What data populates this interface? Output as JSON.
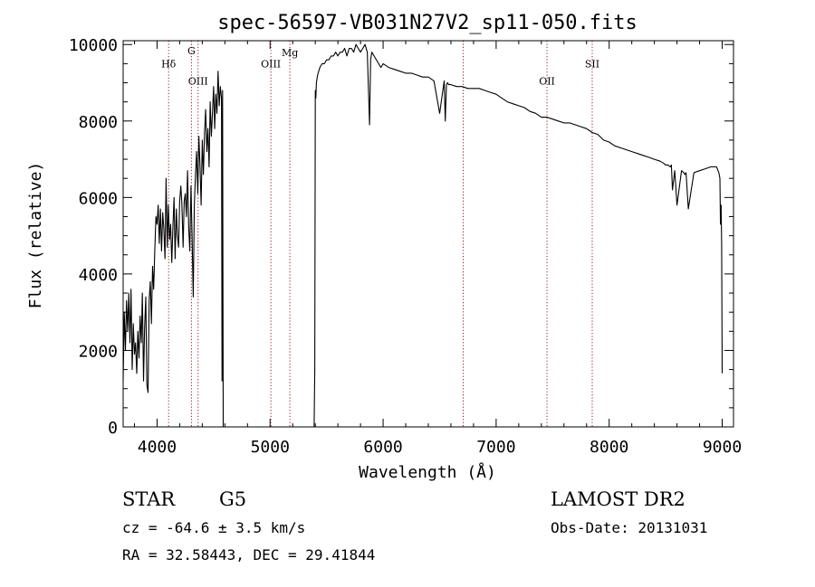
{
  "chart_data": {
    "type": "line",
    "title": "spec-56597-VB031N27V2_sp11-050.fits",
    "xlabel": "Wavelength (Å)",
    "ylabel": "Flux (relative)",
    "xlim": [
      3700,
      9100
    ],
    "ylim": [
      0,
      10100
    ],
    "xticks": [
      4000,
      5000,
      6000,
      7000,
      8000,
      9000
    ],
    "yticks": [
      0,
      2000,
      4000,
      6000,
      8000,
      10000
    ],
    "xtick_labels": [
      "4000",
      "5000",
      "6000",
      "7000",
      "8000",
      "9000"
    ],
    "ytick_labels": [
      "0",
      "2000",
      "4000",
      "6000",
      "8000",
      "10000"
    ],
    "grid": false,
    "line_color": "#000000",
    "marker_color": "#8b0000",
    "series": [
      {
        "x": [
          3700,
          3710,
          3720,
          3730,
          3740,
          3750,
          3760,
          3770,
          3780,
          3790,
          3800,
          3810,
          3820,
          3830,
          3840,
          3850,
          3860,
          3870,
          3880,
          3890,
          3900,
          3910,
          3920,
          3930,
          3940,
          3950,
          3960,
          3970,
          3980,
          3990,
          4000,
          4010,
          4020,
          4030,
          4040,
          4050,
          4060,
          4070,
          4080,
          4090,
          4100,
          4110,
          4120,
          4130,
          4140,
          4150,
          4160,
          4170,
          4180,
          4190,
          4200,
          4210,
          4220,
          4230,
          4240,
          4250,
          4260,
          4270,
          4280,
          4290,
          4300,
          4310,
          4320,
          4330,
          4340,
          4350,
          4360,
          4370,
          4380,
          4390,
          4400,
          4410,
          4420,
          4430,
          4440,
          4450,
          4460,
          4470,
          4480,
          4490,
          4500,
          4510,
          4520,
          4530,
          4540,
          4550,
          4560,
          4570,
          4575,
          4580,
          4585,
          4590,
          4600,
          5380,
          5390,
          5395,
          5400,
          5405,
          5410,
          5420,
          5440,
          5460,
          5480,
          5500,
          5520,
          5540,
          5560,
          5580,
          5600,
          5620,
          5640,
          5660,
          5680,
          5700,
          5720,
          5740,
          5760,
          5780,
          5800,
          5820,
          5840,
          5860,
          5880,
          5890,
          5900,
          5920,
          5940,
          5960,
          5980,
          6000,
          6050,
          6100,
          6150,
          6200,
          6250,
          6300,
          6350,
          6400,
          6450,
          6500,
          6540,
          6550,
          6560,
          6570,
          6580,
          6600,
          6650,
          6700,
          6750,
          6800,
          6850,
          6900,
          6950,
          7000,
          7050,
          7100,
          7150,
          7200,
          7250,
          7300,
          7350,
          7400,
          7450,
          7500,
          7550,
          7600,
          7650,
          7700,
          7750,
          7800,
          7850,
          7900,
          7950,
          8000,
          8050,
          8100,
          8150,
          8200,
          8250,
          8300,
          8350,
          8400,
          8450,
          8480,
          8500,
          8520,
          8540,
          8550,
          8560,
          8580,
          8600,
          8640,
          8660,
          8670,
          8680,
          8700,
          8750,
          8800,
          8850,
          8900,
          8950,
          8970,
          8980,
          8985,
          8990,
          8995,
          9000
        ],
        "y": [
          1200,
          3000,
          2000,
          3300,
          2500,
          3500,
          2200,
          3600,
          1500,
          2700,
          1900,
          2200,
          1400,
          2500,
          1800,
          2900,
          2200,
          3500,
          1200,
          2600,
          3400,
          1100,
          900,
          3300,
          3800,
          2700,
          4200,
          3600,
          4600,
          5500,
          5300,
          5800,
          4800,
          5700,
          4600,
          5600,
          5200,
          4400,
          6500,
          4700,
          5800,
          4900,
          5300,
          4300,
          5200,
          6000,
          4400,
          5700,
          5000,
          4700,
          5900,
          6300,
          5800,
          4700,
          5900,
          6100,
          5500,
          6700,
          5200,
          4600,
          6300,
          5000,
          3400,
          5800,
          6600,
          7200,
          6100,
          7600,
          6800,
          5800,
          7500,
          6600,
          7700,
          8300,
          7200,
          7800,
          6800,
          8500,
          7600,
          8200,
          8900,
          7800,
          8700,
          8200,
          9300,
          8400,
          8900,
          8600,
          1200,
          8800,
          0,
          0,
          0,
          0,
          0,
          1500,
          8800,
          8600,
          9000,
          9200,
          9400,
          9500,
          9500,
          9600,
          9600,
          9700,
          9700,
          9800,
          9700,
          9800,
          9800,
          9900,
          9700,
          9900,
          9900,
          9800,
          10000,
          9900,
          9800,
          9900,
          10000,
          9800,
          7900,
          9600,
          9800,
          9700,
          9600,
          9500,
          9400,
          9500,
          9400,
          9350,
          9300,
          9250,
          9250,
          9200,
          9150,
          9150,
          9050,
          8200,
          9050,
          8000,
          8950,
          9000,
          8950,
          8950,
          8900,
          8900,
          8850,
          8850,
          8850,
          8800,
          8750,
          8700,
          8600,
          8500,
          8450,
          8400,
          8350,
          8250,
          8200,
          8100,
          8100,
          8050,
          8000,
          7950,
          7950,
          7900,
          7850,
          7800,
          7700,
          7650,
          7500,
          7450,
          7350,
          7300,
          7250,
          7200,
          7150,
          7100,
          7050,
          7000,
          6950,
          6900,
          6850,
          6850,
          6800,
          6850,
          6200,
          6700,
          5800,
          6700,
          6650,
          6600,
          6650,
          5700,
          6650,
          6700,
          6750,
          6800,
          6800,
          6650,
          6500,
          5300,
          5800,
          4800,
          1400
        ],
        "markers": [
          {
            "x": 4102,
            "label": "Hδ",
            "label_y": 9400
          },
          {
            "x": 4304,
            "label": "G",
            "label_y": 9750
          },
          {
            "x": 4363,
            "label": "OIII",
            "label_y": 8950
          },
          {
            "x": 5007,
            "label": "OIII",
            "label_y": 9400
          },
          {
            "x": 5175,
            "label": "Mg",
            "label_y": 9700
          },
          {
            "x": 6708,
            "label": "",
            "label_y": 0
          },
          {
            "x": 7450,
            "label": "OII",
            "label_y": 8950
          },
          {
            "x": 7850,
            "label": "SII",
            "label_y": 9400
          }
        ]
      }
    ]
  },
  "footer": {
    "object_class": "STAR",
    "subclass": "G5",
    "redshift": "cz = -64.6 ± 3.5 km/s",
    "coords": "RA =  32.58443, DEC =  29.41844",
    "survey": "LAMOST DR2",
    "obs_date": "Obs-Date: 20131031"
  }
}
